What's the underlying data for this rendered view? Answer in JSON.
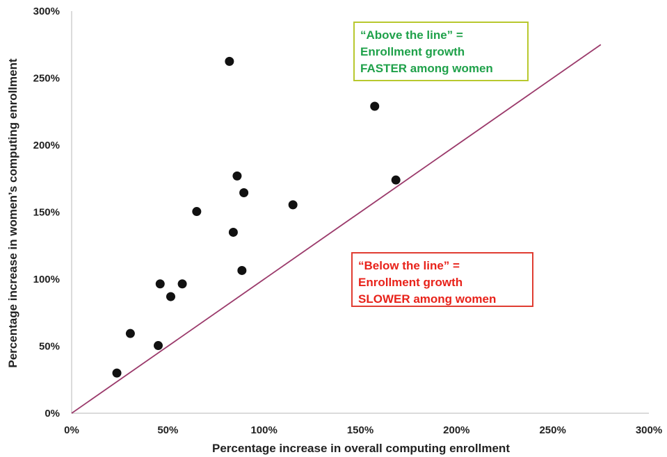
{
  "colors": {
    "points": "#111111",
    "reference_line": "#9b3a6b",
    "axis": "#cfcfcf",
    "above_text": "#1fa14a",
    "above_border": "#b8c82e",
    "below_text": "#e8221a",
    "below_border": "#e03c31"
  },
  "annotations": {
    "above": {
      "lines": [
        "“Above the line” =",
        "Enrollment growth",
        "FASTER among women"
      ]
    },
    "below": {
      "lines": [
        "“Below the line” =",
        "Enrollment growth",
        "SLOWER among women"
      ]
    }
  },
  "chart_data": {
    "type": "scatter",
    "title": "",
    "xlabel": "Percentage increase in overall computing enrollment",
    "ylabel": "Percentage increase in women’s computing enrollment",
    "xlim": [
      0,
      300
    ],
    "ylim": [
      0,
      300
    ],
    "x_ticks": [
      0,
      50,
      100,
      150,
      200,
      250,
      300
    ],
    "y_ticks": [
      0,
      50,
      100,
      150,
      200,
      250,
      300
    ],
    "x_tick_labels": [
      "0%",
      "50%",
      "100%",
      "150%",
      "200%",
      "250%",
      "300%"
    ],
    "y_tick_labels": [
      "0%",
      "50%",
      "100%",
      "150%",
      "200%",
      "250%",
      "300%"
    ],
    "grid": false,
    "legend": "none",
    "reference_line": {
      "x": [
        0,
        275
      ],
      "y": [
        0,
        275
      ]
    },
    "points": [
      {
        "x": 23.5,
        "y": 30
      },
      {
        "x": 30.5,
        "y": 59.5
      },
      {
        "x": 45,
        "y": 50.5
      },
      {
        "x": 46,
        "y": 96.5
      },
      {
        "x": 51.5,
        "y": 87
      },
      {
        "x": 57.5,
        "y": 96.5
      },
      {
        "x": 65,
        "y": 150.5
      },
      {
        "x": 82,
        "y": 262.5
      },
      {
        "x": 84,
        "y": 135
      },
      {
        "x": 86,
        "y": 177
      },
      {
        "x": 88.5,
        "y": 106.5
      },
      {
        "x": 89.5,
        "y": 164.5
      },
      {
        "x": 115,
        "y": 155.5
      },
      {
        "x": 157.5,
        "y": 229
      },
      {
        "x": 168.5,
        "y": 174
      }
    ]
  }
}
